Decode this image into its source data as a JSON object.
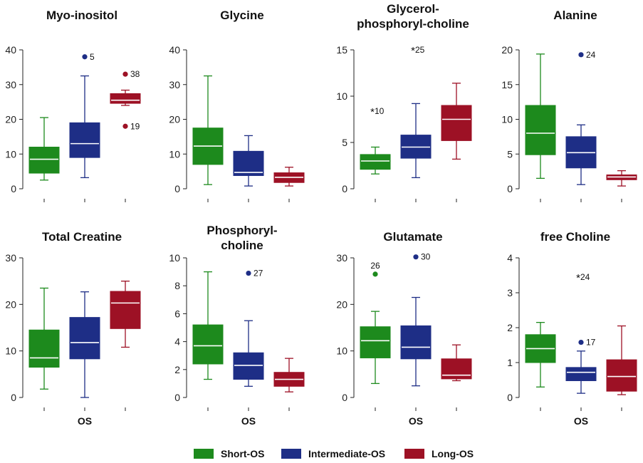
{
  "colors": {
    "short": "#1d8a1d",
    "intermediate": "#1e2e86",
    "long": "#9d1125",
    "median": "#ffffff",
    "axis": "#222222"
  },
  "legend": [
    {
      "key": "short",
      "label": "Short-OS"
    },
    {
      "key": "intermediate",
      "label": "Intermediate-OS"
    },
    {
      "key": "long",
      "label": "Long-OS"
    }
  ],
  "chart_data": [
    {
      "type": "box",
      "title_lines": [
        "Myo-inositol"
      ],
      "ylim": [
        0,
        40
      ],
      "yticks": [
        0,
        10,
        20,
        30,
        40
      ],
      "xlabel": "",
      "groups": [
        {
          "key": "short",
          "min": 2.5,
          "q1": 4.5,
          "median": 8.5,
          "q3": 12,
          "max": 20.5,
          "outliers": []
        },
        {
          "key": "intermediate",
          "min": 3.2,
          "q1": 9,
          "median": 13,
          "q3": 19,
          "max": 32.5,
          "outliers": [
            {
              "value": 38,
              "label": "5",
              "marker": "dot"
            }
          ]
        },
        {
          "key": "long",
          "min": 24,
          "q1": 24.6,
          "median": 25.5,
          "q3": 27.4,
          "max": 28.4,
          "outliers": [
            {
              "value": 33,
              "label": "38",
              "marker": "dot"
            },
            {
              "value": 18,
              "label": "19",
              "marker": "dot"
            }
          ]
        }
      ]
    },
    {
      "type": "box",
      "title_lines": [
        "Glycine"
      ],
      "ylim": [
        0,
        40
      ],
      "yticks": [
        0,
        10,
        20,
        30,
        40
      ],
      "xlabel": "",
      "groups": [
        {
          "key": "short",
          "min": 1.2,
          "q1": 7,
          "median": 12.3,
          "q3": 17.5,
          "max": 32.5,
          "outliers": []
        },
        {
          "key": "intermediate",
          "min": 0.8,
          "q1": 3.8,
          "median": 4.7,
          "q3": 10.8,
          "max": 15.3,
          "outliers": []
        },
        {
          "key": "long",
          "min": 0.8,
          "q1": 1.8,
          "median": 3.3,
          "q3": 4.6,
          "max": 6.2,
          "outliers": []
        }
      ]
    },
    {
      "type": "box",
      "title_lines": [
        "Glycerol-",
        "phosphoryl-choline"
      ],
      "ylim": [
        0,
        15
      ],
      "yticks": [
        0,
        5,
        10,
        15
      ],
      "xlabel": "",
      "groups": [
        {
          "key": "short",
          "min": 1.6,
          "q1": 2.1,
          "median": 3.0,
          "q3": 3.7,
          "max": 4.5,
          "outliers": [
            {
              "value": 8.4,
              "label": "10",
              "marker": "star"
            }
          ]
        },
        {
          "key": "intermediate",
          "min": 1.2,
          "q1": 3.3,
          "median": 4.5,
          "q3": 5.8,
          "max": 9.2,
          "outliers": [
            {
              "value": 15.0,
              "label": "25",
              "marker": "star"
            }
          ]
        },
        {
          "key": "long",
          "min": 3.2,
          "q1": 5.2,
          "median": 7.5,
          "q3": 9.0,
          "max": 11.4,
          "outliers": []
        }
      ]
    },
    {
      "type": "box",
      "title_lines": [
        "Alanine"
      ],
      "ylim": [
        0,
        20
      ],
      "yticks": [
        0,
        5,
        10,
        15,
        20
      ],
      "xlabel": "",
      "groups": [
        {
          "key": "short",
          "min": 1.5,
          "q1": 4.9,
          "median": 8.0,
          "q3": 12.0,
          "max": 19.4,
          "outliers": []
        },
        {
          "key": "intermediate",
          "min": 0.6,
          "q1": 3.0,
          "median": 5.2,
          "q3": 7.5,
          "max": 9.2,
          "outliers": [
            {
              "value": 19.3,
              "label": "24",
              "marker": "dot"
            }
          ]
        },
        {
          "key": "long",
          "min": 0.4,
          "q1": 1.3,
          "median": 1.7,
          "q3": 2.0,
          "max": 2.6,
          "outliers": []
        }
      ]
    },
    {
      "type": "box",
      "title_lines": [
        "Total Creatine"
      ],
      "ylim": [
        0,
        30
      ],
      "yticks": [
        0,
        10,
        20,
        30
      ],
      "xlabel": "OS",
      "groups": [
        {
          "key": "short",
          "min": 1.8,
          "q1": 6.5,
          "median": 8.5,
          "q3": 14.5,
          "max": 23.5,
          "outliers": []
        },
        {
          "key": "intermediate",
          "min": 0,
          "q1": 8.3,
          "median": 11.8,
          "q3": 17.2,
          "max": 22.7,
          "outliers": []
        },
        {
          "key": "long",
          "min": 10.8,
          "q1": 14.8,
          "median": 20.3,
          "q3": 22.8,
          "max": 25.0,
          "outliers": []
        }
      ]
    },
    {
      "type": "box",
      "title_lines": [
        "Phosphoryl-",
        "choline"
      ],
      "ylim": [
        0,
        10
      ],
      "yticks": [
        0,
        2,
        4,
        6,
        8,
        10
      ],
      "xlabel": "OS",
      "groups": [
        {
          "key": "short",
          "min": 1.3,
          "q1": 2.4,
          "median": 3.7,
          "q3": 5.2,
          "max": 9.0,
          "outliers": []
        },
        {
          "key": "intermediate",
          "min": 0.8,
          "q1": 1.3,
          "median": 2.3,
          "q3": 3.2,
          "max": 5.5,
          "outliers": [
            {
              "value": 8.9,
              "label": "27",
              "marker": "dot"
            }
          ]
        },
        {
          "key": "long",
          "min": 0.4,
          "q1": 0.8,
          "median": 1.3,
          "q3": 1.8,
          "max": 2.8,
          "outliers": []
        }
      ]
    },
    {
      "type": "box",
      "title_lines": [
        "Glutamate"
      ],
      "ylim": [
        0,
        30
      ],
      "yticks": [
        0,
        10,
        20,
        30
      ],
      "xlabel": "OS",
      "groups": [
        {
          "key": "short",
          "min": 3.0,
          "q1": 8.5,
          "median": 12.2,
          "q3": 15.2,
          "max": 18.5,
          "outliers": [
            {
              "value": 26.5,
              "label": "26",
              "marker": "dot",
              "label_pos": "above"
            }
          ]
        },
        {
          "key": "intermediate",
          "min": 2.5,
          "q1": 8.3,
          "median": 10.8,
          "q3": 15.4,
          "max": 21.5,
          "outliers": [
            {
              "value": 30.2,
              "label": "30",
              "marker": "dot"
            }
          ]
        },
        {
          "key": "long",
          "min": 3.6,
          "q1": 4.0,
          "median": 4.8,
          "q3": 8.3,
          "max": 11.3,
          "outliers": []
        }
      ]
    },
    {
      "type": "box",
      "title_lines": [
        "free Choline"
      ],
      "ylim": [
        0,
        4
      ],
      "yticks": [
        0,
        1,
        2,
        3,
        4
      ],
      "xlabel": "OS",
      "groups": [
        {
          "key": "short",
          "min": 0.3,
          "q1": 1.0,
          "median": 1.4,
          "q3": 1.8,
          "max": 2.15,
          "outliers": []
        },
        {
          "key": "intermediate",
          "min": 0.12,
          "q1": 0.48,
          "median": 0.72,
          "q3": 0.86,
          "max": 1.33,
          "outliers": [
            {
              "value": 1.58,
              "label": "17",
              "marker": "dot"
            },
            {
              "value": 3.45,
              "label": "24",
              "marker": "star"
            }
          ]
        },
        {
          "key": "long",
          "min": 0.08,
          "q1": 0.18,
          "median": 0.6,
          "q3": 1.08,
          "max": 2.05,
          "outliers": []
        }
      ]
    }
  ]
}
